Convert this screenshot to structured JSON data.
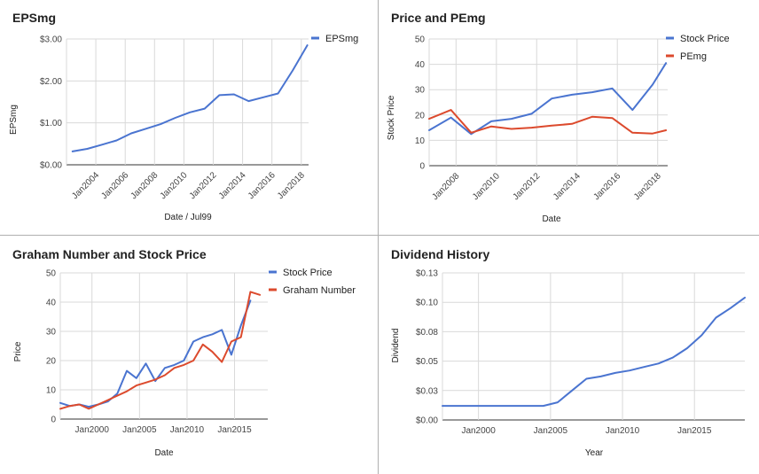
{
  "colors": {
    "blue": "#4a74d0",
    "red": "#dc4a2d"
  },
  "chart_data": [
    {
      "id": "eps",
      "type": "line",
      "title": "EPSmg",
      "xlabel": "Date / Jul99",
      "ylabel": "EPSmg",
      "xaxis": "date",
      "xlim": [
        "2002-01-01",
        "2018-07-01"
      ],
      "ylim": [
        0,
        3
      ],
      "yticks": [
        0,
        1,
        2,
        3
      ],
      "ytick_labels": [
        "$0.00",
        "$1.00",
        "$2.00",
        "$3.00"
      ],
      "xticks": [
        "2004-01-01",
        "2006-01-01",
        "2008-01-01",
        "2010-01-01",
        "2012-01-01",
        "2014-01-01",
        "2016-01-01",
        "2018-01-01"
      ],
      "xtick_labels": [
        "Jan2004",
        "Jan2006",
        "Jan2008",
        "Jan2010",
        "Jan2012",
        "Jan2014",
        "Jan2016",
        "Jan2018"
      ],
      "grid": true,
      "legend": "top-right",
      "series": [
        {
          "name": "EPSmg",
          "color": "#4a74d0",
          "x": [
            "2002-06-01",
            "2003-06-01",
            "2004-06-01",
            "2005-06-01",
            "2006-06-01",
            "2007-06-01",
            "2008-06-01",
            "2009-06-01",
            "2010-06-01",
            "2011-06-01",
            "2012-06-01",
            "2013-06-01",
            "2014-06-01",
            "2015-06-01",
            "2016-06-01",
            "2017-06-01",
            "2018-06-01"
          ],
          "y": [
            0.32,
            0.38,
            0.48,
            0.58,
            0.75,
            0.86,
            0.97,
            1.12,
            1.25,
            1.34,
            1.66,
            1.68,
            1.52,
            1.61,
            1.7,
            2.25,
            2.85
          ]
        }
      ]
    },
    {
      "id": "price-pe",
      "type": "line",
      "title": "Price and PEmg",
      "xlabel": "Date",
      "ylabel": "Stock Price",
      "xaxis": "date",
      "xlim": [
        "2006-09-01",
        "2018-07-01"
      ],
      "ylim": [
        0,
        50
      ],
      "yticks": [
        0,
        10,
        20,
        30,
        40,
        50
      ],
      "ytick_labels": [
        "0",
        "10",
        "20",
        "30",
        "40",
        "50"
      ],
      "xticks": [
        "2008-01-01",
        "2010-01-01",
        "2012-01-01",
        "2014-01-01",
        "2016-01-01",
        "2018-01-01"
      ],
      "xtick_labels": [
        "Jan2008",
        "Jan2010",
        "Jan2012",
        "Jan2014",
        "Jan2016",
        "Jan2018"
      ],
      "grid": true,
      "legend": "top-right",
      "series": [
        {
          "name": "Stock Price",
          "color": "#4a74d0",
          "x": [
            "2006-09-01",
            "2007-10-01",
            "2008-10-01",
            "2009-10-01",
            "2010-10-01",
            "2011-10-01",
            "2012-10-01",
            "2013-10-01",
            "2014-10-01",
            "2015-10-01",
            "2016-10-01",
            "2017-10-01",
            "2018-06-01"
          ],
          "y": [
            14,
            19,
            12.5,
            17.5,
            18.5,
            20.5,
            26.5,
            28,
            29,
            30.5,
            22,
            32,
            40.5
          ]
        },
        {
          "name": "PEmg",
          "color": "#dc4a2d",
          "x": [
            "2006-09-01",
            "2007-10-01",
            "2008-10-01",
            "2009-10-01",
            "2010-10-01",
            "2011-10-01",
            "2012-10-01",
            "2013-10-01",
            "2014-10-01",
            "2015-10-01",
            "2016-10-01",
            "2017-10-01",
            "2018-06-01"
          ],
          "y": [
            18.5,
            22,
            13,
            15.5,
            14.5,
            15,
            15.8,
            16.5,
            19.3,
            18.8,
            13,
            12.7,
            14
          ]
        }
      ]
    },
    {
      "id": "graham",
      "type": "line",
      "title": "Graham Number and Stock Price",
      "xlabel": "Date",
      "ylabel": "Price",
      "xaxis": "date",
      "xlim": [
        "1996-09-01",
        "2018-07-01"
      ],
      "ylim": [
        0,
        50
      ],
      "yticks": [
        0,
        10,
        20,
        30,
        40,
        50
      ],
      "ytick_labels": [
        "0",
        "10",
        "20",
        "30",
        "40",
        "50"
      ],
      "xticks": [
        "2000-01-01",
        "2005-01-01",
        "2010-01-01",
        "2015-01-01"
      ],
      "xtick_labels": [
        "Jan2000",
        "Jan2005",
        "Jan2010",
        "Jan2015"
      ],
      "grid": true,
      "legend": "top-right",
      "series": [
        {
          "name": "Stock Price",
          "color": "#4a74d0",
          "x": [
            "1996-09-01",
            "1997-09-01",
            "1998-09-01",
            "1999-09-01",
            "2000-09-01",
            "2001-09-01",
            "2002-09-01",
            "2003-09-01",
            "2004-09-01",
            "2005-09-01",
            "2006-09-01",
            "2007-09-01",
            "2008-09-01",
            "2009-09-01",
            "2010-09-01",
            "2011-09-01",
            "2012-09-01",
            "2013-09-01",
            "2014-09-01",
            "2015-09-01",
            "2016-09-01",
            "2017-09-01",
            "2018-06-01"
          ],
          "y": [
            5.5,
            4.5,
            5,
            4.2,
            5,
            6,
            8.7,
            16.5,
            14,
            19,
            13,
            17.5,
            18.5,
            20,
            26.5,
            28,
            29,
            30.5,
            22,
            32,
            40.5,
            null,
            null
          ]
        },
        {
          "name": "Graham Number",
          "color": "#dc4a2d",
          "x": [
            "1996-09-01",
            "1997-09-01",
            "1998-09-01",
            "1999-09-01",
            "2000-09-01",
            "2001-09-01",
            "2002-09-01",
            "2003-09-01",
            "2004-09-01",
            "2005-09-01",
            "2006-09-01",
            "2007-09-01",
            "2008-09-01",
            "2009-09-01",
            "2010-09-01",
            "2011-09-01",
            "2012-09-01",
            "2013-09-01",
            "2014-09-01",
            "2015-09-01",
            "2016-09-01",
            "2017-09-01",
            "2018-06-01"
          ],
          "y": [
            3.5,
            4.5,
            5,
            3.5,
            5,
            6.5,
            8,
            9.5,
            11.5,
            12.5,
            13.5,
            15,
            17.5,
            18.5,
            20,
            25.5,
            23,
            19.5,
            26.5,
            28,
            43.5,
            42.5,
            null
          ]
        }
      ]
    },
    {
      "id": "dividend",
      "type": "line",
      "title": "Dividend History",
      "xlabel": "Year",
      "ylabel": "Dividend",
      "xaxis": "date",
      "xlim": [
        "1997-07-01",
        "2018-07-01"
      ],
      "ylim": [
        0,
        0.125
      ],
      "yticks": [
        0,
        0.025,
        0.05,
        0.075,
        0.1,
        0.125
      ],
      "ytick_labels": [
        "$0.00",
        "$0.03",
        "$0.05",
        "$0.08",
        "$0.10",
        "$0.13"
      ],
      "xticks": [
        "2000-01-01",
        "2005-01-01",
        "2010-01-01",
        "2015-01-01"
      ],
      "xtick_labels": [
        "Jan2000",
        "Jan2005",
        "Jan2010",
        "Jan2015"
      ],
      "grid": true,
      "legend": "none",
      "series": [
        {
          "name": "",
          "color": "#4a74d0",
          "x": [
            "1997-07-01",
            "1998-07-01",
            "1999-07-01",
            "2000-07-01",
            "2001-07-01",
            "2002-07-01",
            "2003-07-01",
            "2004-07-01",
            "2005-07-01",
            "2006-07-01",
            "2007-07-01",
            "2008-07-01",
            "2009-07-01",
            "2010-07-01",
            "2011-07-01",
            "2012-07-01",
            "2013-07-01",
            "2014-07-01",
            "2015-07-01",
            "2016-07-01",
            "2017-07-01",
            "2018-07-01"
          ],
          "y": [
            0.012,
            0.012,
            0.012,
            0.012,
            0.012,
            0.012,
            0.012,
            0.012,
            0.015,
            0.025,
            0.035,
            0.037,
            0.04,
            0.042,
            0.045,
            0.048,
            0.053,
            0.061,
            0.072,
            0.087,
            0.095,
            0.104
          ]
        }
      ]
    }
  ]
}
